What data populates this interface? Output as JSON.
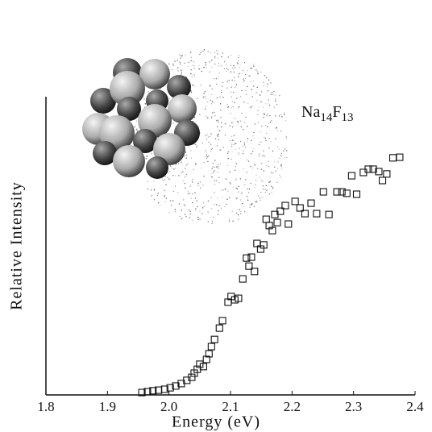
{
  "chart_data": {
    "type": "scatter",
    "x_label": "Energy (eV)",
    "y_label": "Relative Intensity",
    "annotation": [
      "Na",
      "14",
      "F",
      "13"
    ],
    "xlim": [
      1.8,
      2.4
    ],
    "ylim": [
      0,
      1
    ],
    "xticks": [
      1.8,
      1.9,
      {
        "value": 2,
        "label": "2.0"
      },
      2.1,
      2.2,
      2.3,
      2.4
    ],
    "marker": "open-square",
    "color": "#111",
    "x": [
      1.956,
      1.965,
      1.974,
      1.983,
      1.993,
      2.002,
      2.011,
      2.02,
      2.029,
      2.037,
      2.041,
      2.046,
      2.05,
      2.056,
      2.061,
      2.065,
      2.069,
      2.074,
      2.082,
      2.087,
      2.096,
      2.101,
      2.107,
      2.113,
      2.12,
      2.126,
      2.13,
      2.134,
      2.139,
      2.143,
      2.149,
      2.154,
      2.158,
      2.163,
      2.168,
      2.172,
      2.176,
      2.181,
      2.189,
      2.194,
      2.205,
      2.213,
      2.221,
      2.231,
      2.24,
      2.251,
      2.26,
      2.273,
      2.281,
      2.289,
      2.297,
      2.305,
      2.316,
      2.324,
      2.332,
      2.341,
      2.347,
      2.354,
      2.364,
      2.375
    ],
    "values": [
      0.008,
      0.011,
      0.014,
      0.016,
      0.019,
      0.024,
      0.03,
      0.038,
      0.049,
      0.059,
      0.073,
      0.086,
      0.103,
      0.095,
      0.119,
      0.138,
      0.162,
      0.186,
      0.224,
      0.249,
      0.311,
      0.33,
      0.319,
      0.324,
      0.389,
      0.459,
      0.432,
      0.462,
      0.414,
      0.508,
      0.489,
      0.503,
      0.589,
      0.568,
      0.551,
      0.605,
      0.578,
      0.616,
      0.635,
      0.573,
      0.649,
      0.627,
      0.608,
      0.643,
      0.608,
      0.681,
      0.605,
      0.681,
      0.681,
      0.676,
      0.735,
      0.673,
      0.746,
      0.757,
      0.757,
      0.749,
      0.719,
      0.741,
      0.795,
      0.797
    ]
  }
}
